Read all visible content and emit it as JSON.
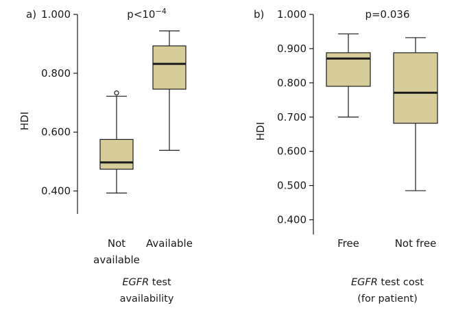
{
  "chart_data": [
    {
      "type": "boxplot",
      "panel_label": "a)",
      "annotation": "p<10",
      "annotation_sup": "−4",
      "ylabel": "HDI",
      "xlabel_italic": "EGFR",
      "xlabel_rest": " test",
      "xlabel_line2": "availability",
      "ylim": [
        0.35,
        1.0
      ],
      "yticks": [
        "0.400",
        "0.600",
        "0.800",
        "1.000"
      ],
      "ytick_values": [
        0.4,
        0.6,
        0.8,
        1.0
      ],
      "fill_color": "#d6cd9b",
      "categories": [
        {
          "label_lines": [
            "Not",
            "available"
          ],
          "min": 0.393,
          "q1": 0.474,
          "median": 0.497,
          "q3": 0.575,
          "max": 0.722,
          "outliers": [
            0.733
          ]
        },
        {
          "label_lines": [
            "Available"
          ],
          "min": 0.538,
          "q1": 0.746,
          "median": 0.832,
          "q3": 0.893,
          "max": 0.944,
          "outliers": []
        }
      ]
    },
    {
      "type": "boxplot",
      "panel_label": "b)",
      "annotation": "p=0.036",
      "annotation_sup": "",
      "ylabel": "HDI",
      "xlabel_italic": "EGFR",
      "xlabel_rest": " test cost",
      "xlabel_line2": "(for patient)",
      "ylim": [
        0.36,
        1.0
      ],
      "yticks": [
        "0.400",
        "0.500",
        "0.600",
        "0.700",
        "0.800",
        "0.900",
        "1.000"
      ],
      "ytick_values": [
        0.4,
        0.5,
        0.6,
        0.7,
        0.8,
        0.9,
        1.0
      ],
      "fill_color": "#d6cd9b",
      "categories": [
        {
          "label_lines": [
            "Free"
          ],
          "min": 0.7,
          "q1": 0.79,
          "median": 0.871,
          "q3": 0.888,
          "max": 0.943,
          "outliers": []
        },
        {
          "label_lines": [
            "Not free"
          ],
          "min": 0.485,
          "q1": 0.682,
          "median": 0.771,
          "q3": 0.888,
          "max": 0.932,
          "outliers": []
        }
      ]
    }
  ]
}
